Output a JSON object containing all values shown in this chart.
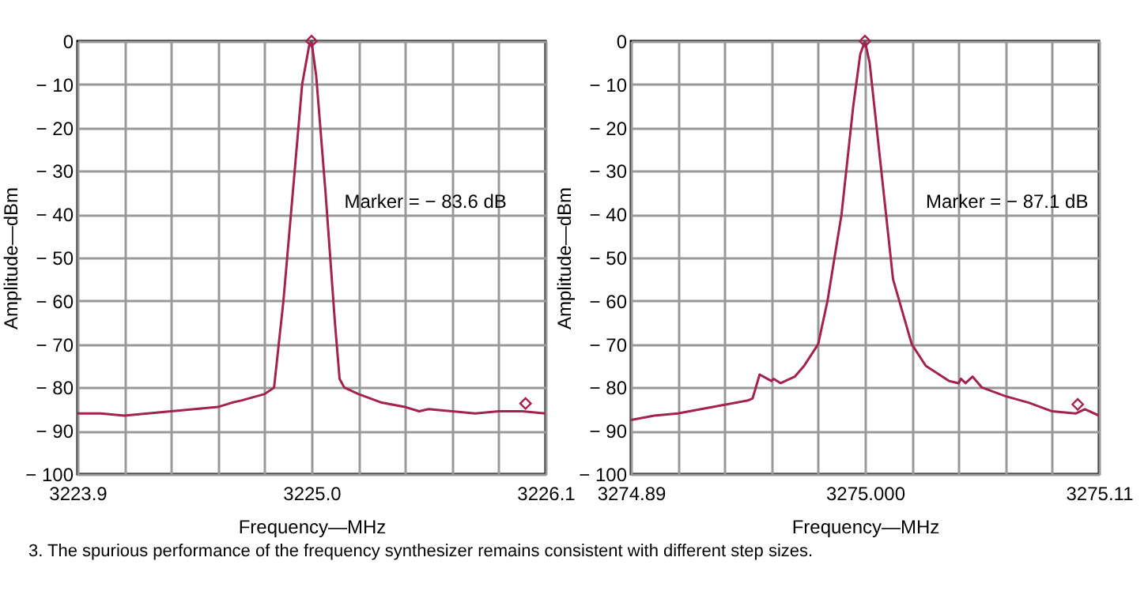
{
  "chart_data": [
    {
      "type": "line",
      "xlabel": "Frequency—MHz",
      "ylabel": "Amplitude—dBm",
      "grid": true,
      "xlim": [
        3223.9,
        3226.1
      ],
      "ylim": [
        -100,
        0
      ],
      "xticks": [
        {
          "value": 3223.9,
          "label": "3223.9"
        },
        {
          "value": 3224.12,
          "label": null
        },
        {
          "value": 3224.34,
          "label": null
        },
        {
          "value": 3224.56,
          "label": null
        },
        {
          "value": 3224.78,
          "label": null
        },
        {
          "value": 3225.0,
          "label": "3225.0"
        },
        {
          "value": 3225.22,
          "label": null
        },
        {
          "value": 3225.44,
          "label": null
        },
        {
          "value": 3225.66,
          "label": null
        },
        {
          "value": 3225.88,
          "label": null
        },
        {
          "value": 3226.1,
          "label": "3226.1"
        }
      ],
      "yticks": [
        {
          "value": 0,
          "label": "0"
        },
        {
          "value": -10,
          "label": "− 10"
        },
        {
          "value": -20,
          "label": "− 20"
        },
        {
          "value": -30,
          "label": "− 30"
        },
        {
          "value": -40,
          "label": "− 40"
        },
        {
          "value": -50,
          "label": "− 50"
        },
        {
          "value": -60,
          "label": "− 60"
        },
        {
          "value": -70,
          "label": "− 70"
        },
        {
          "value": -80,
          "label": "− 80"
        },
        {
          "value": -90,
          "label": "− 90"
        },
        {
          "value": -100,
          "label": "− 100"
        }
      ],
      "series": [
        {
          "type": "line",
          "color": "#a3224f",
          "x": [
            3223.9,
            3224.01,
            3224.12,
            3224.23,
            3224.34,
            3224.45,
            3224.56,
            3224.626,
            3224.67,
            3224.78,
            3224.824,
            3224.868,
            3224.912,
            3224.956,
            3224.989,
            3225.0,
            3225.022,
            3225.066,
            3225.11,
            3225.132,
            3225.154,
            3225.22,
            3225.33,
            3225.44,
            3225.506,
            3225.55,
            3225.66,
            3225.77,
            3225.88,
            3225.99,
            3226.1
          ],
          "values": [
            -86,
            -86,
            -86.5,
            -86,
            -85.5,
            -85,
            -84.5,
            -83.5,
            -83,
            -81.5,
            -80,
            -60,
            -35,
            -10,
            -1,
            0,
            -8,
            -35,
            -65,
            -78,
            -80,
            -81.5,
            -83.5,
            -84.5,
            -85.5,
            -85,
            -85.5,
            -86,
            -85.5,
            -85.5,
            -86
          ]
        },
        {
          "type": "scatter",
          "marker": "diamond",
          "color": "#a3224f",
          "x": [
            3225.0,
            3226.006
          ],
          "values": [
            0,
            -83.7
          ]
        }
      ],
      "annotations": [
        "Marker = − 83.6 dB",
        "3. The spurious performance of the frequency synthesizer remains consistent with different step sizes."
      ]
    },
    {
      "type": "line",
      "xlabel": "Frequency—MHz",
      "ylabel": "Amplitude—dBm",
      "grid": true,
      "xlim": [
        3274.89,
        3275.11
      ],
      "ylim": [
        -100,
        0
      ],
      "xticks": [
        {
          "value": 3274.89,
          "label": "3274.89"
        },
        {
          "value": 3274.912,
          "label": null
        },
        {
          "value": 3274.934,
          "label": null
        },
        {
          "value": 3274.956,
          "label": null
        },
        {
          "value": 3274.978,
          "label": null
        },
        {
          "value": 3275.0,
          "label": "3275.000"
        },
        {
          "value": 3275.022,
          "label": null
        },
        {
          "value": 3275.044,
          "label": null
        },
        {
          "value": 3275.066,
          "label": null
        },
        {
          "value": 3275.088,
          "label": null
        },
        {
          "value": 3275.11,
          "label": "3275.11"
        }
      ],
      "yticks": [
        {
          "value": 0,
          "label": "0"
        },
        {
          "value": -10,
          "label": "− 10"
        },
        {
          "value": -20,
          "label": "− 20"
        },
        {
          "value": -30,
          "label": "− 30"
        },
        {
          "value": -40,
          "label": "− 40"
        },
        {
          "value": -50,
          "label": "− 50"
        },
        {
          "value": -60,
          "label": "− 60"
        },
        {
          "value": -70,
          "label": "− 70"
        },
        {
          "value": -80,
          "label": "− 80"
        },
        {
          "value": -90,
          "label": "− 90"
        },
        {
          "value": -100,
          "label": "− 100"
        }
      ],
      "series": [
        {
          "type": "line",
          "color": "#a3224f",
          "x": [
            3274.89,
            3274.901,
            3274.912,
            3274.923,
            3274.934,
            3274.945,
            3274.9472,
            3274.9505,
            3274.956,
            3274.9571,
            3274.9604,
            3274.967,
            3274.9714,
            3274.978,
            3274.9824,
            3274.989,
            3274.9945,
            3274.9978,
            3275.0,
            3275.0022,
            3275.0066,
            3275.0132,
            3275.022,
            3275.0286,
            3275.0396,
            3275.044,
            3275.0451,
            3275.0473,
            3275.0506,
            3275.055,
            3275.066,
            3275.077,
            3275.088,
            3275.099,
            3275.1034,
            3275.11
          ],
          "values": [
            -87.5,
            -86.5,
            -86,
            -85,
            -84,
            -83,
            -82.5,
            -77,
            -78.5,
            -78,
            -79,
            -77.5,
            -75,
            -70,
            -60,
            -40,
            -15,
            -3,
            0,
            -5,
            -25,
            -55,
            -70,
            -75,
            -78.5,
            -79,
            -78,
            -79,
            -77.5,
            -80,
            -82,
            -83.5,
            -85.5,
            -86,
            -85,
            -86.5
          ]
        },
        {
          "type": "scatter",
          "marker": "diamond",
          "color": "#a3224f",
          "x": [
            3275.0,
            3275.1
          ],
          "values": [
            0,
            -83.9
          ]
        }
      ],
      "annotations": [
        "Marker = − 87.1 dB"
      ]
    }
  ]
}
